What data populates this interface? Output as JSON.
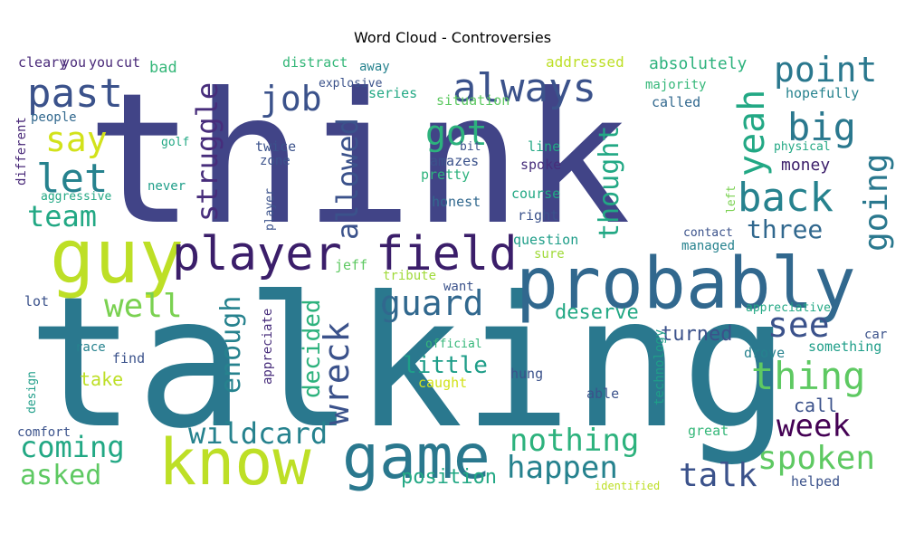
{
  "title": "Word Cloud - Controversies",
  "chart_data": {
    "type": "wordcloud",
    "title": "Word Cloud - Controversies",
    "words": [
      {
        "text": "think",
        "color": "#414487"
      },
      {
        "text": "talking",
        "color": "#2a788e"
      },
      {
        "text": "probably",
        "color": "#31688e"
      },
      {
        "text": "guy",
        "color": "#bddf26"
      },
      {
        "text": "know",
        "color": "#bddf26"
      },
      {
        "text": "game",
        "color": "#2a788e"
      },
      {
        "text": "player",
        "color": "#3b1e6a"
      },
      {
        "text": "field",
        "color": "#3b1e6a"
      },
      {
        "text": "always",
        "color": "#3b528b"
      },
      {
        "text": "past",
        "color": "#3b528b"
      },
      {
        "text": "let",
        "color": "#26828e"
      },
      {
        "text": "say",
        "color": "#d2e21b"
      },
      {
        "text": "team",
        "color": "#22a884"
      },
      {
        "text": "job",
        "color": "#3b528b"
      },
      {
        "text": "struggle",
        "color": "#472d7b"
      },
      {
        "text": "got",
        "color": "#2db27d"
      },
      {
        "text": "allowed",
        "color": "#3b528b"
      },
      {
        "text": "thought",
        "color": "#22a884"
      },
      {
        "text": "yeah",
        "color": "#22a884"
      },
      {
        "text": "point",
        "color": "#2a788e"
      },
      {
        "text": "big",
        "color": "#2a788e"
      },
      {
        "text": "back",
        "color": "#26828e"
      },
      {
        "text": "going",
        "color": "#2a788e"
      },
      {
        "text": "three",
        "color": "#31688e"
      },
      {
        "text": "see",
        "color": "#3b528b"
      },
      {
        "text": "thing",
        "color": "#5ec962"
      },
      {
        "text": "week",
        "color": "#440154"
      },
      {
        "text": "spoken",
        "color": "#5ec962"
      },
      {
        "text": "talk",
        "color": "#3b528b"
      },
      {
        "text": "happen",
        "color": "#26828e"
      },
      {
        "text": "nothing",
        "color": "#2db27d"
      },
      {
        "text": "wreck",
        "color": "#3b528b"
      },
      {
        "text": "guard",
        "color": "#31688e"
      },
      {
        "text": "wildcard",
        "color": "#26828e"
      },
      {
        "text": "coming",
        "color": "#22a884"
      },
      {
        "text": "asked",
        "color": "#5ec962"
      },
      {
        "text": "well",
        "color": "#7ad151"
      },
      {
        "text": "enough",
        "color": "#26828e"
      },
      {
        "text": "decided",
        "color": "#2db27d"
      },
      {
        "text": "little",
        "color": "#1f9e89"
      },
      {
        "text": "deserve",
        "color": "#22a884"
      },
      {
        "text": "turned",
        "color": "#3b528b"
      },
      {
        "text": "position",
        "color": "#22a884"
      },
      {
        "text": "money",
        "color": "#3b1e6a"
      },
      {
        "text": "call",
        "color": "#3b528b"
      },
      {
        "text": "take",
        "color": "#bddf26"
      },
      {
        "text": "cleary",
        "color": "#482878"
      },
      {
        "text": "you",
        "color": "#482878"
      },
      {
        "text": "you",
        "color": "#482878"
      },
      {
        "text": "cut",
        "color": "#482878"
      },
      {
        "text": "distract",
        "color": "#35b779"
      },
      {
        "text": "addressed",
        "color": "#bddf26"
      },
      {
        "text": "absolutely",
        "color": "#2db27d"
      },
      {
        "text": "explosive",
        "color": "#3b528b"
      },
      {
        "text": "away",
        "color": "#26828e"
      },
      {
        "text": "majority",
        "color": "#35b779"
      },
      {
        "text": "bad",
        "color": "#35b779"
      },
      {
        "text": "series",
        "color": "#22a884"
      },
      {
        "text": "situation",
        "color": "#5ec962"
      },
      {
        "text": "called",
        "color": "#31688e"
      },
      {
        "text": "hopefully",
        "color": "#26828e"
      },
      {
        "text": "people",
        "color": "#31688e"
      },
      {
        "text": "different",
        "color": "#482878"
      },
      {
        "text": "golf",
        "color": "#22a884"
      },
      {
        "text": "twice",
        "color": "#3b528b"
      },
      {
        "text": "zone",
        "color": "#3b528b"
      },
      {
        "text": "bit",
        "color": "#3b528b"
      },
      {
        "text": "line",
        "color": "#22a884"
      },
      {
        "text": "physical",
        "color": "#22a884"
      },
      {
        "text": "amazes",
        "color": "#3b528b"
      },
      {
        "text": "spoke",
        "color": "#472d7b"
      },
      {
        "text": "pretty",
        "color": "#2db27d"
      },
      {
        "text": "never",
        "color": "#1f9e89"
      },
      {
        "text": "aggressive",
        "color": "#22a884"
      },
      {
        "text": "honest",
        "color": "#31688e"
      },
      {
        "text": "course",
        "color": "#22a884"
      },
      {
        "text": "left",
        "color": "#7ad151"
      },
      {
        "text": "right",
        "color": "#3b528b"
      },
      {
        "text": "player",
        "color": "#3b528b"
      },
      {
        "text": "contact",
        "color": "#3b528b"
      },
      {
        "text": "question",
        "color": "#1f9e89"
      },
      {
        "text": "managed",
        "color": "#26828e"
      },
      {
        "text": "sure",
        "color": "#a0da39"
      },
      {
        "text": "jeff",
        "color": "#5ec962"
      },
      {
        "text": "tribute",
        "color": "#a0da39"
      },
      {
        "text": "lot",
        "color": "#3b528b"
      },
      {
        "text": "want",
        "color": "#3b528b"
      },
      {
        "text": "appreciative",
        "color": "#22a884"
      },
      {
        "text": "appreciate",
        "color": "#472d7b"
      },
      {
        "text": "technology",
        "color": "#1f9e89"
      },
      {
        "text": "car",
        "color": "#3b528b"
      },
      {
        "text": "race",
        "color": "#26828e"
      },
      {
        "text": "official",
        "color": "#35b779"
      },
      {
        "text": "drove",
        "color": "#26828e"
      },
      {
        "text": "something",
        "color": "#1f9e89"
      },
      {
        "text": "find",
        "color": "#3b528b"
      },
      {
        "text": "design",
        "color": "#1f9e89"
      },
      {
        "text": "hung",
        "color": "#3b528b"
      },
      {
        "text": "caught",
        "color": "#d2e21b"
      },
      {
        "text": "able",
        "color": "#3b528b"
      },
      {
        "text": "comfort",
        "color": "#3b528b"
      },
      {
        "text": "great",
        "color": "#35b779"
      },
      {
        "text": "helped",
        "color": "#3b528b"
      },
      {
        "text": "identified",
        "color": "#bddf26"
      }
    ]
  }
}
